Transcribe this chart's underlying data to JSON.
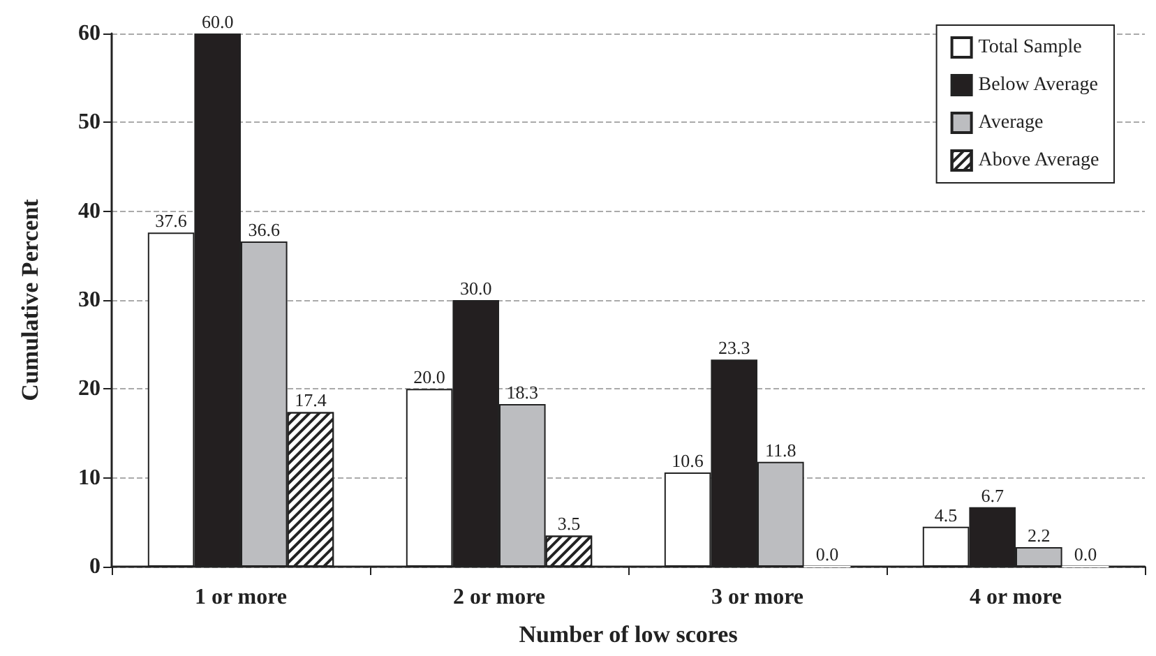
{
  "chart_data": {
    "type": "bar",
    "xlabel": "Number of low scores",
    "ylabel": "Cumulative Percent",
    "categories": [
      "1 or more",
      "2 or more",
      "3 or more",
      "4 or more"
    ],
    "series": [
      {
        "name": "Total Sample",
        "color": "#ffffff",
        "values": [
          37.6,
          20.0,
          10.6,
          4.5
        ],
        "value_labels": [
          "37.6",
          "20.0",
          "10.6",
          "4.5"
        ]
      },
      {
        "name": "Below Average",
        "color": "#231f20",
        "values": [
          60.0,
          30.0,
          23.3,
          6.7
        ],
        "value_labels": [
          "60.0",
          "30.0",
          "23.3",
          "6.7"
        ]
      },
      {
        "name": "Average",
        "color": "#bcbdc0",
        "values": [
          36.6,
          18.3,
          11.8,
          2.2
        ],
        "value_labels": [
          "36.6",
          "18.3",
          "11.8",
          "2.2"
        ]
      },
      {
        "name": "Above Average",
        "color": "#ffffff",
        "values": [
          17.4,
          3.5,
          0.0,
          0.0
        ],
        "value_labels": [
          "17.4",
          "3.5",
          "0.0",
          "0.0"
        ]
      }
    ],
    "ylim": [
      0,
      60
    ],
    "yticks": [
      0,
      10,
      20,
      30,
      40,
      50,
      60
    ],
    "grid": "y",
    "legend": "top right"
  }
}
